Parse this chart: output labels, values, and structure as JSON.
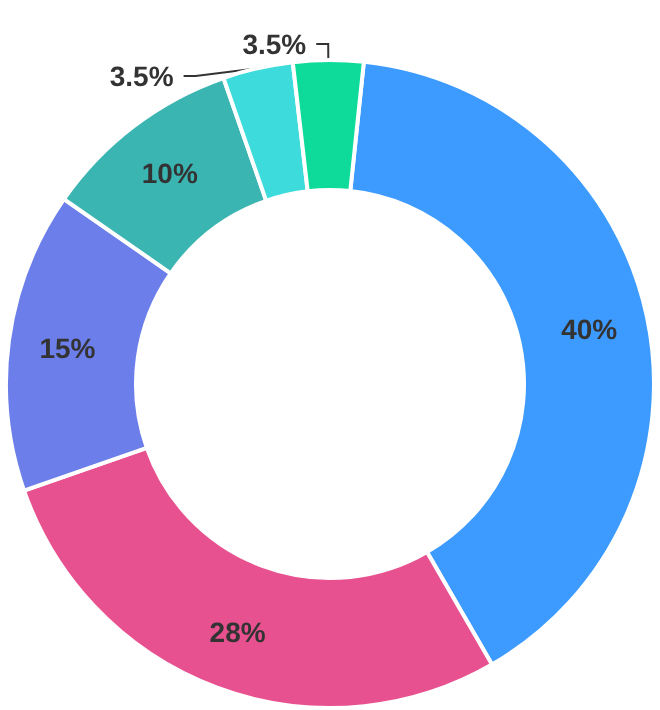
{
  "chart_data": {
    "type": "donut",
    "categories": [
      null,
      null,
      null,
      null,
      null,
      null
    ],
    "values": [
      40,
      28,
      15,
      10,
      3.5,
      3.5
    ],
    "colors": [
      "#3d9bff",
      "#e8518f",
      "#6c7ee9",
      "#3bb5b1",
      "#3ddbdb",
      "#0edb9a"
    ],
    "value_labels": [
      "40%",
      "28%",
      "15%",
      "10%",
      "3.5%",
      "3.5%"
    ]
  }
}
